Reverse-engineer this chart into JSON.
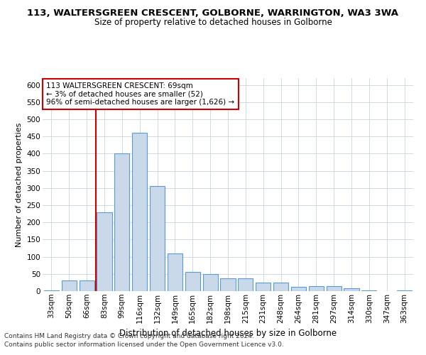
{
  "title_line1": "113, WALTERSGREEN CRESCENT, GOLBORNE, WARRINGTON, WA3 3WA",
  "title_line2": "Size of property relative to detached houses in Golborne",
  "xlabel": "Distribution of detached houses by size in Golborne",
  "ylabel": "Number of detached properties",
  "categories": [
    "33sqm",
    "50sqm",
    "66sqm",
    "83sqm",
    "99sqm",
    "116sqm",
    "132sqm",
    "149sqm",
    "165sqm",
    "182sqm",
    "198sqm",
    "215sqm",
    "231sqm",
    "248sqm",
    "264sqm",
    "281sqm",
    "297sqm",
    "314sqm",
    "330sqm",
    "347sqm",
    "363sqm"
  ],
  "values": [
    3,
    30,
    30,
    230,
    400,
    460,
    305,
    110,
    55,
    50,
    38,
    38,
    25,
    25,
    12,
    15,
    15,
    8,
    3,
    0,
    3
  ],
  "bar_color": "#c9d9ea",
  "bar_edge_color": "#5b9bd5",
  "grid_color": "#c8d4e0",
  "annotation_box_text": "113 WALTERSGREEN CRESCENT: 69sqm\n← 3% of detached houses are smaller (52)\n96% of semi-detached houses are larger (1,626) →",
  "annotation_box_color": "#ffffff",
  "annotation_box_edge_color": "#cc0000",
  "vline_color": "#cc0000",
  "vline_x_index": 2,
  "ylim": [
    0,
    620
  ],
  "yticks": [
    0,
    50,
    100,
    150,
    200,
    250,
    300,
    350,
    400,
    450,
    500,
    550,
    600
  ],
  "footer_line1": "Contains HM Land Registry data © Crown copyright and database right 2024.",
  "footer_line2": "Contains public sector information licensed under the Open Government Licence v3.0.",
  "background_color": "#ffffff",
  "title1_fontsize": 9.5,
  "title2_fontsize": 8.5,
  "xlabel_fontsize": 8.5,
  "ylabel_fontsize": 8,
  "tick_fontsize": 7.5,
  "annotation_fontsize": 7.5,
  "footer_fontsize": 6.5
}
